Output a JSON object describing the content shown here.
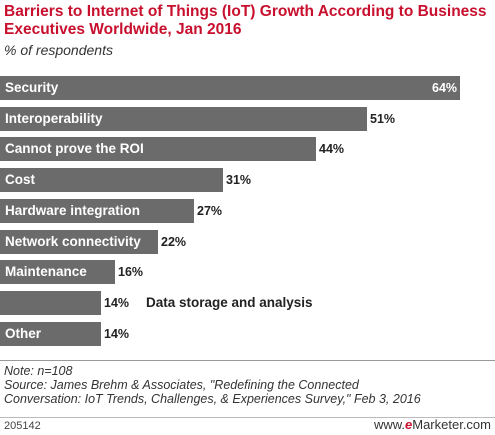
{
  "title": "Barriers to Internet of Things (IoT) Growth According to Business Executives Worldwide, Jan 2016",
  "subtitle": "% of respondents",
  "chart_data": {
    "type": "bar",
    "orientation": "horizontal",
    "categories": [
      "Security",
      "Interoperability",
      "Cannot prove the ROI",
      "Cost",
      "Hardware integration",
      "Network connectivity",
      "Maintenance",
      "Data storage and analysis",
      "Other"
    ],
    "values": [
      64,
      51,
      44,
      31,
      27,
      22,
      16,
      14,
      14
    ],
    "value_labels": [
      "64%",
      "51%",
      "44%",
      "31%",
      "27%",
      "22%",
      "16%",
      "14%",
      "14%"
    ],
    "unit": "%",
    "xlim": [
      0,
      64
    ],
    "grid": false,
    "legend": "none",
    "bar_color": "#6b6b6b"
  },
  "footer": {
    "note": "Note: n=108",
    "source_line1": "Source: James Brehm & Associates, \"Redefining the Connected",
    "source_line2": "Conversation: IoT Trends, Challenges, & Experiences Survey,\" Feb 3, 2016",
    "chart_id": "205142",
    "brand_prefix": "www.",
    "brand_e": "e",
    "brand_rest": "Marketer.com"
  }
}
